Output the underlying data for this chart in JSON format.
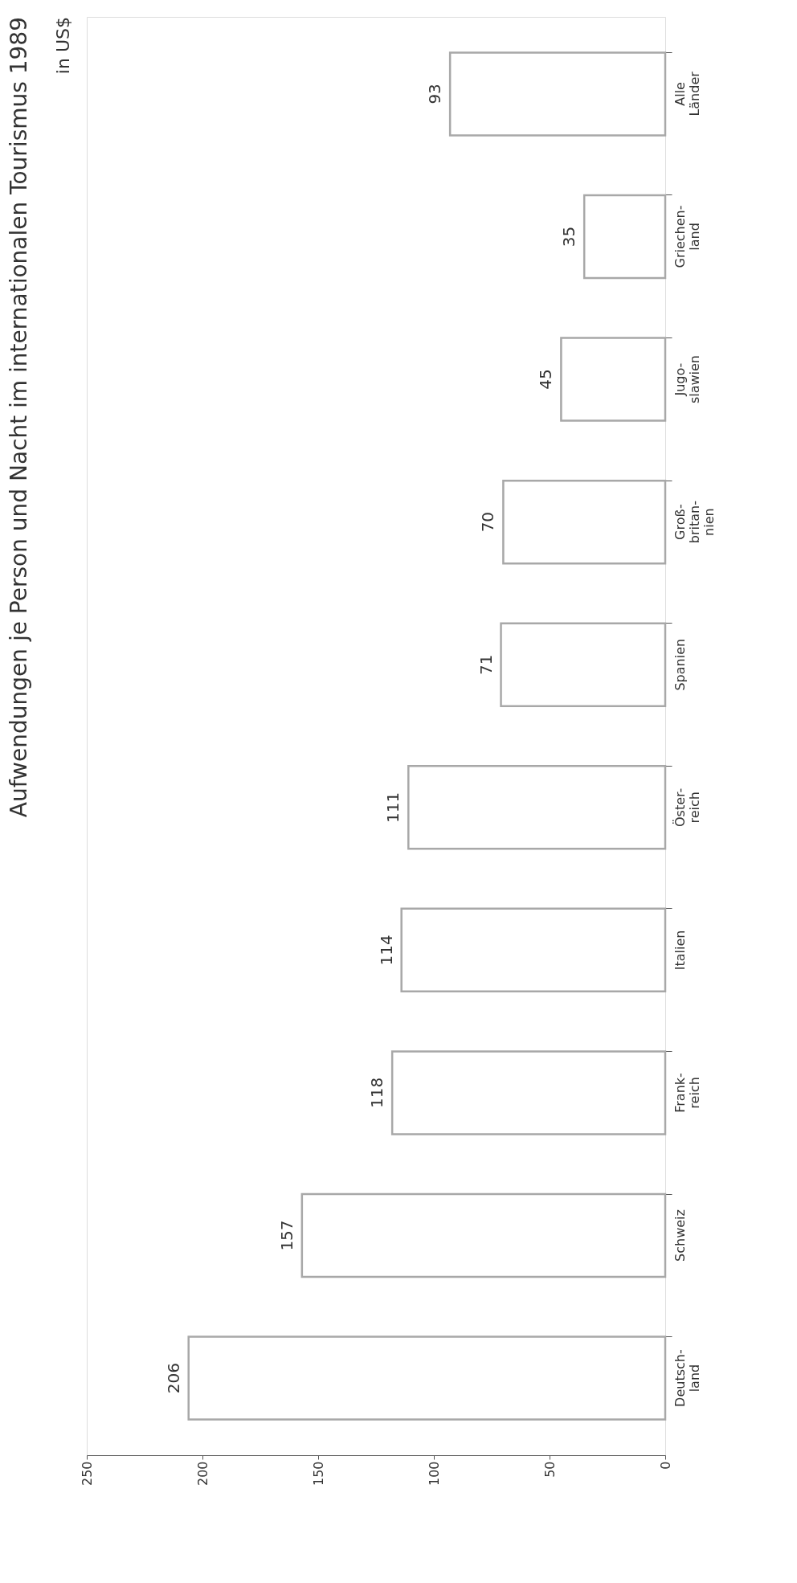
{
  "chart_data": {
    "type": "bar",
    "orientation": "horizontal",
    "title": "Aufwendungen je Person und Nacht im internationalen Tourismus 1989",
    "subtitle": "in US$",
    "categories": [
      "Alle\nLänder",
      "Griechen-\nland",
      "Jugo-\nslawien",
      "Groß-\nbritan-\nnien",
      "Spanien",
      "Öster-\nreich",
      "Italien",
      "Frank-\nreich",
      "Schweiz",
      "Deutsch-\nland"
    ],
    "values": [
      93,
      35,
      45,
      70,
      71,
      111,
      114,
      118,
      157,
      206
    ],
    "color": "#a8a8a8",
    "xlim": [
      250,
      0
    ],
    "xticks": [
      0,
      50,
      100,
      150,
      200,
      250
    ],
    "data_labels": true,
    "grid": false
  }
}
